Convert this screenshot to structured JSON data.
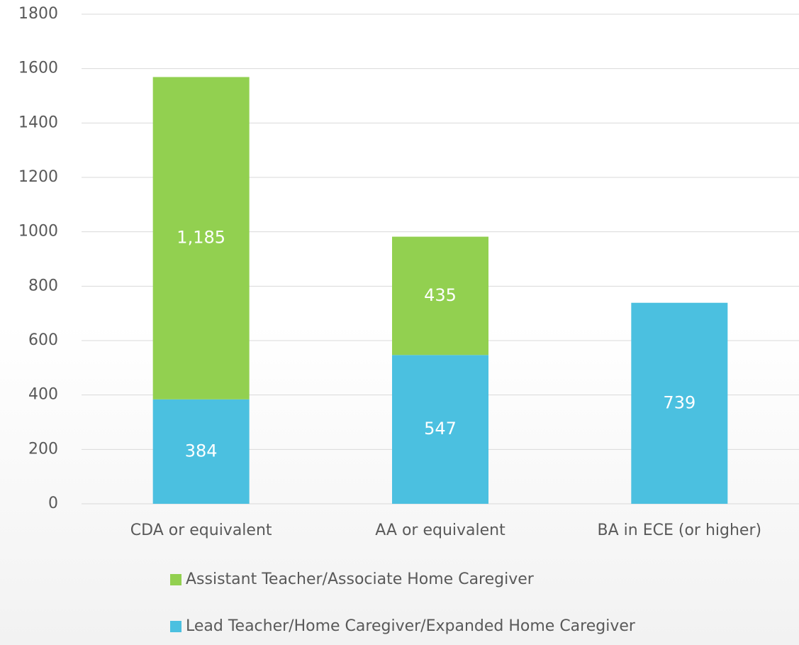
{
  "chart_data": {
    "type": "stacked_bar",
    "categories": [
      "CDA or equivalent",
      "AA or equivalent",
      "BA in ECE (or higher)"
    ],
    "series": [
      {
        "name": "Lead Teacher/Home Caregiver/Expanded Home Caregiver",
        "color": "#4bc0e0",
        "values": [
          384,
          547,
          739
        ]
      },
      {
        "name": "Assistant Teacher/Associate Home Caregiver",
        "color": "#92d050",
        "values": [
          1185,
          435,
          null
        ],
        "value_labels": [
          "1,185",
          "435",
          null
        ]
      }
    ],
    "ylim": [
      0,
      1800
    ],
    "yticks": [
      0,
      200,
      400,
      600,
      800,
      1000,
      1200,
      1400,
      1600,
      1800
    ],
    "grid": true,
    "legend": "bottom"
  }
}
